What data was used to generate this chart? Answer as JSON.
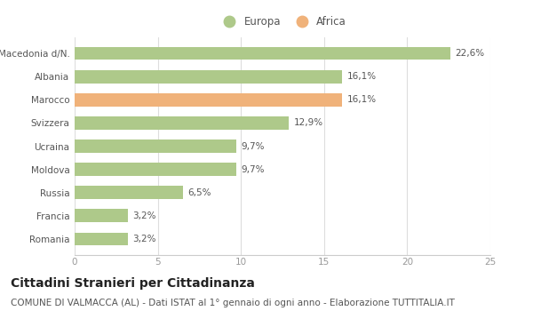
{
  "categories": [
    "Romania",
    "Francia",
    "Russia",
    "Moldova",
    "Ucraina",
    "Svizzera",
    "Marocco",
    "Albania",
    "Macedonia d/N."
  ],
  "values": [
    3.2,
    3.2,
    6.5,
    9.7,
    9.7,
    12.9,
    16.1,
    16.1,
    22.6
  ],
  "labels": [
    "3,2%",
    "3,2%",
    "6,5%",
    "9,7%",
    "9,7%",
    "12,9%",
    "16,1%",
    "16,1%",
    "22,6%"
  ],
  "colors": [
    "#aec98a",
    "#aec98a",
    "#aec98a",
    "#aec98a",
    "#aec98a",
    "#aec98a",
    "#f0b27a",
    "#aec98a",
    "#aec98a"
  ],
  "legend_europa_color": "#aec98a",
  "legend_africa_color": "#f0b27a",
  "xlim": [
    0,
    25
  ],
  "xticks": [
    0,
    5,
    10,
    15,
    20,
    25
  ],
  "title": "Cittadini Stranieri per Cittadinanza",
  "subtitle": "COMUNE DI VALMACCA (AL) - Dati ISTAT al 1° gennaio di ogni anno - Elaborazione TUTTITALIA.IT",
  "bg_color": "#ffffff",
  "bar_height": 0.55,
  "title_fontsize": 10,
  "subtitle_fontsize": 7.5,
  "label_fontsize": 7.5,
  "tick_fontsize": 7.5,
  "legend_fontsize": 8.5,
  "text_color": "#555555",
  "grid_color": "#dddddd",
  "spine_color": "#cccccc"
}
